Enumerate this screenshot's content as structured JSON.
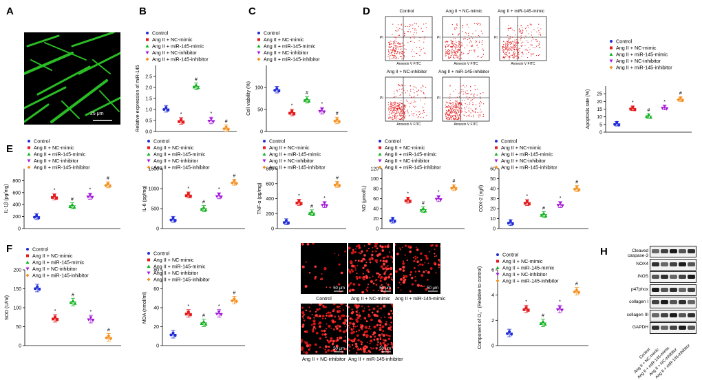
{
  "figure": {
    "panel_labels": [
      "A",
      "B",
      "C",
      "D",
      "E",
      "F",
      "G",
      "H"
    ],
    "colors": {
      "control": "#1f2bd8",
      "nc_mimic": "#e31a1c",
      "mir_mimic": "#12b21f",
      "nc_inhibitor": "#a219d6",
      "mir_inhibitor": "#f5901e"
    },
    "legend": [
      "Control",
      "Ang II + NC-mimic",
      "Ang II + miR-145-mimic",
      "Ang II + NC-inhibitor",
      "Ang II + miR-145-inhibitor"
    ],
    "scalebar_A": "25 μm",
    "scalebar_G": "50 μm",
    "flow_titles": [
      "Control",
      "Ang II + NC-mimic",
      "Ang II + miR-145-mimic",
      "Ang II + NC-inhibitor",
      "Ang II + miR-145-inhibitor"
    ],
    "flow_xlabel": "Annexin V FITC",
    "flow_ylabel": "PI",
    "g_captions": [
      "Control",
      "Ang II + NC-mimic",
      "Ang II + miR-145-mimic",
      "Ang II + NC-inhibitor",
      "Ang II + miR-145-inhibitor"
    ],
    "wb_proteins": [
      "Cleaved caspase-3",
      "NOX4",
      "iNOS",
      "p47phox",
      "collagen I",
      "collagen III",
      "GAPDH"
    ],
    "wb_lanes": [
      "Control",
      "Ang II + NC-mimic",
      "Ang II + miR-145-mimic",
      "Ang II + NC-inhibitor",
      "Ang II + miR-145-inhibitor"
    ]
  },
  "chart_data": [
    {
      "id": "B",
      "type": "scatter",
      "ylabel": "Relative expression of miR-145",
      "ylim": [
        0,
        3.0
      ],
      "yticks": [
        0,
        0.5,
        1.0,
        1.5,
        2.0,
        2.5
      ],
      "ytick_labels": [
        "0.0",
        "0.5",
        "1.0",
        "1.5",
        "2.0",
        "2.5"
      ],
      "values": [
        1.03,
        0.48,
        2.05,
        0.5,
        0.15
      ],
      "marks": [
        "",
        "*",
        "#",
        "*",
        "#"
      ]
    },
    {
      "id": "C",
      "type": "scatter",
      "ylabel": "Cell viability (%)",
      "ylim": [
        0,
        150
      ],
      "yticks": [
        0,
        50,
        100
      ],
      "ytick_labels": [
        "0",
        "50",
        "100"
      ],
      "values": [
        95,
        43,
        72,
        47,
        25
      ],
      "marks": [
        "",
        "*",
        "#",
        "*",
        "#"
      ]
    },
    {
      "id": "D",
      "type": "scatter",
      "ylabel": "Apoptosis rate (%)",
      "ylim": [
        0,
        30
      ],
      "yticks": [
        0,
        5,
        10,
        15,
        20,
        25
      ],
      "ytick_labels": [
        "0",
        "5",
        "10",
        "15",
        "20",
        "25"
      ],
      "values": [
        5.5,
        15.5,
        10.5,
        16,
        21.5
      ],
      "marks": [
        "",
        "*",
        "#",
        "*",
        "#"
      ]
    },
    {
      "id": "E1",
      "type": "scatter",
      "ylabel": "IL-1β (pg/mg)",
      "ylim": [
        0,
        1000
      ],
      "yticks": [
        0,
        200,
        400,
        600,
        800
      ],
      "ytick_labels": [
        "0",
        "200",
        "400",
        "600",
        "800"
      ],
      "values": [
        200,
        530,
        380,
        540,
        730
      ],
      "marks": [
        "",
        "*",
        "#",
        "*",
        "#"
      ]
    },
    {
      "id": "E2",
      "type": "scatter",
      "ylabel": "IL-6 (pg/mg)",
      "ylim": [
        0,
        1500
      ],
      "yticks": [
        0,
        500,
        1000,
        1500
      ],
      "ytick_labels": [
        "0",
        "500",
        "1000",
        "1500"
      ],
      "values": [
        230,
        840,
        500,
        820,
        1160
      ],
      "marks": [
        "",
        "*",
        "#",
        "*",
        "#"
      ]
    },
    {
      "id": "E3",
      "type": "scatter",
      "ylabel": "TNF-α (pg/mg)",
      "ylim": [
        0,
        800
      ],
      "yticks": [
        0,
        200,
        400,
        600,
        800
      ],
      "ytick_labels": [
        "0",
        "200",
        "400",
        "600",
        "800"
      ],
      "values": [
        90,
        350,
        210,
        320,
        590
      ],
      "marks": [
        "",
        "*",
        "#",
        "*",
        "#"
      ]
    },
    {
      "id": "E4",
      "type": "scatter",
      "ylabel": "NO (μmol/L)",
      "ylim": [
        0,
        120
      ],
      "yticks": [
        0,
        20,
        40,
        60,
        80,
        100,
        120
      ],
      "ytick_labels": [
        "0",
        "20",
        "40",
        "60",
        "80",
        "100",
        "120"
      ],
      "values": [
        17,
        57,
        38,
        60,
        82
      ],
      "marks": [
        "",
        "*",
        "#",
        "*",
        "#"
      ]
    },
    {
      "id": "E5",
      "type": "scatter",
      "ylabel": "COX-2 (ng/l)",
      "ylim": [
        0,
        60
      ],
      "yticks": [
        0,
        10,
        20,
        30,
        40,
        50,
        60
      ],
      "ytick_labels": [
        "0",
        "10",
        "20",
        "30",
        "40",
        "50",
        "60"
      ],
      "values": [
        6,
        26,
        14,
        24,
        40
      ],
      "marks": [
        "",
        "*",
        "#",
        "*",
        "#"
      ]
    },
    {
      "id": "F1",
      "type": "scatter",
      "ylabel": "SOD (U/ml)",
      "ylim": [
        0,
        200
      ],
      "yticks": [
        0,
        50,
        100,
        150,
        200
      ],
      "ytick_labels": [
        "0",
        "50",
        "100",
        "150",
        "200"
      ],
      "values": [
        152,
        72,
        115,
        70,
        22
      ],
      "marks": [
        "",
        "*",
        "#",
        "*",
        "#"
      ]
    },
    {
      "id": "F2",
      "type": "scatter",
      "ylabel": "MDA (nmol/ml)",
      "ylim": [
        0,
        80
      ],
      "yticks": [
        0,
        20,
        40,
        60,
        80
      ],
      "ytick_labels": [
        "0",
        "20",
        "40",
        "60",
        "80"
      ],
      "values": [
        12,
        34,
        24,
        34,
        48
      ],
      "marks": [
        "",
        "*",
        "#",
        "*",
        "#"
      ]
    },
    {
      "id": "G",
      "type": "scatter",
      "ylabel": "Component of O₂⁻ (Relative to control)",
      "ylim": [
        0,
        6
      ],
      "yticks": [
        0,
        2,
        4,
        6
      ],
      "ytick_labels": [
        "0",
        "2",
        "4",
        "6"
      ],
      "values": [
        1.0,
        2.9,
        1.8,
        2.9,
        4.3
      ],
      "marks": [
        "",
        "*",
        "#",
        "*",
        "#"
      ]
    }
  ]
}
